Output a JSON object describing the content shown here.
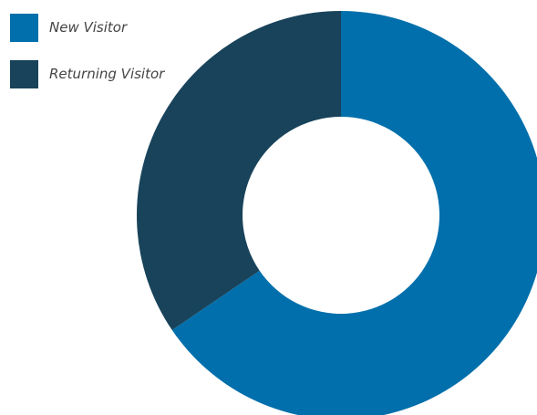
{
  "chart_data": {
    "type": "pie",
    "donut": true,
    "title": "",
    "legend_position": "top-left",
    "series": [
      {
        "name": "New Visitor",
        "value": 65.5,
        "color": "#016FAB"
      },
      {
        "name": "Returning Visitor",
        "value": 34.5,
        "color": "#18435A"
      }
    ],
    "start_angle_deg": 0,
    "direction": "clockwise"
  }
}
